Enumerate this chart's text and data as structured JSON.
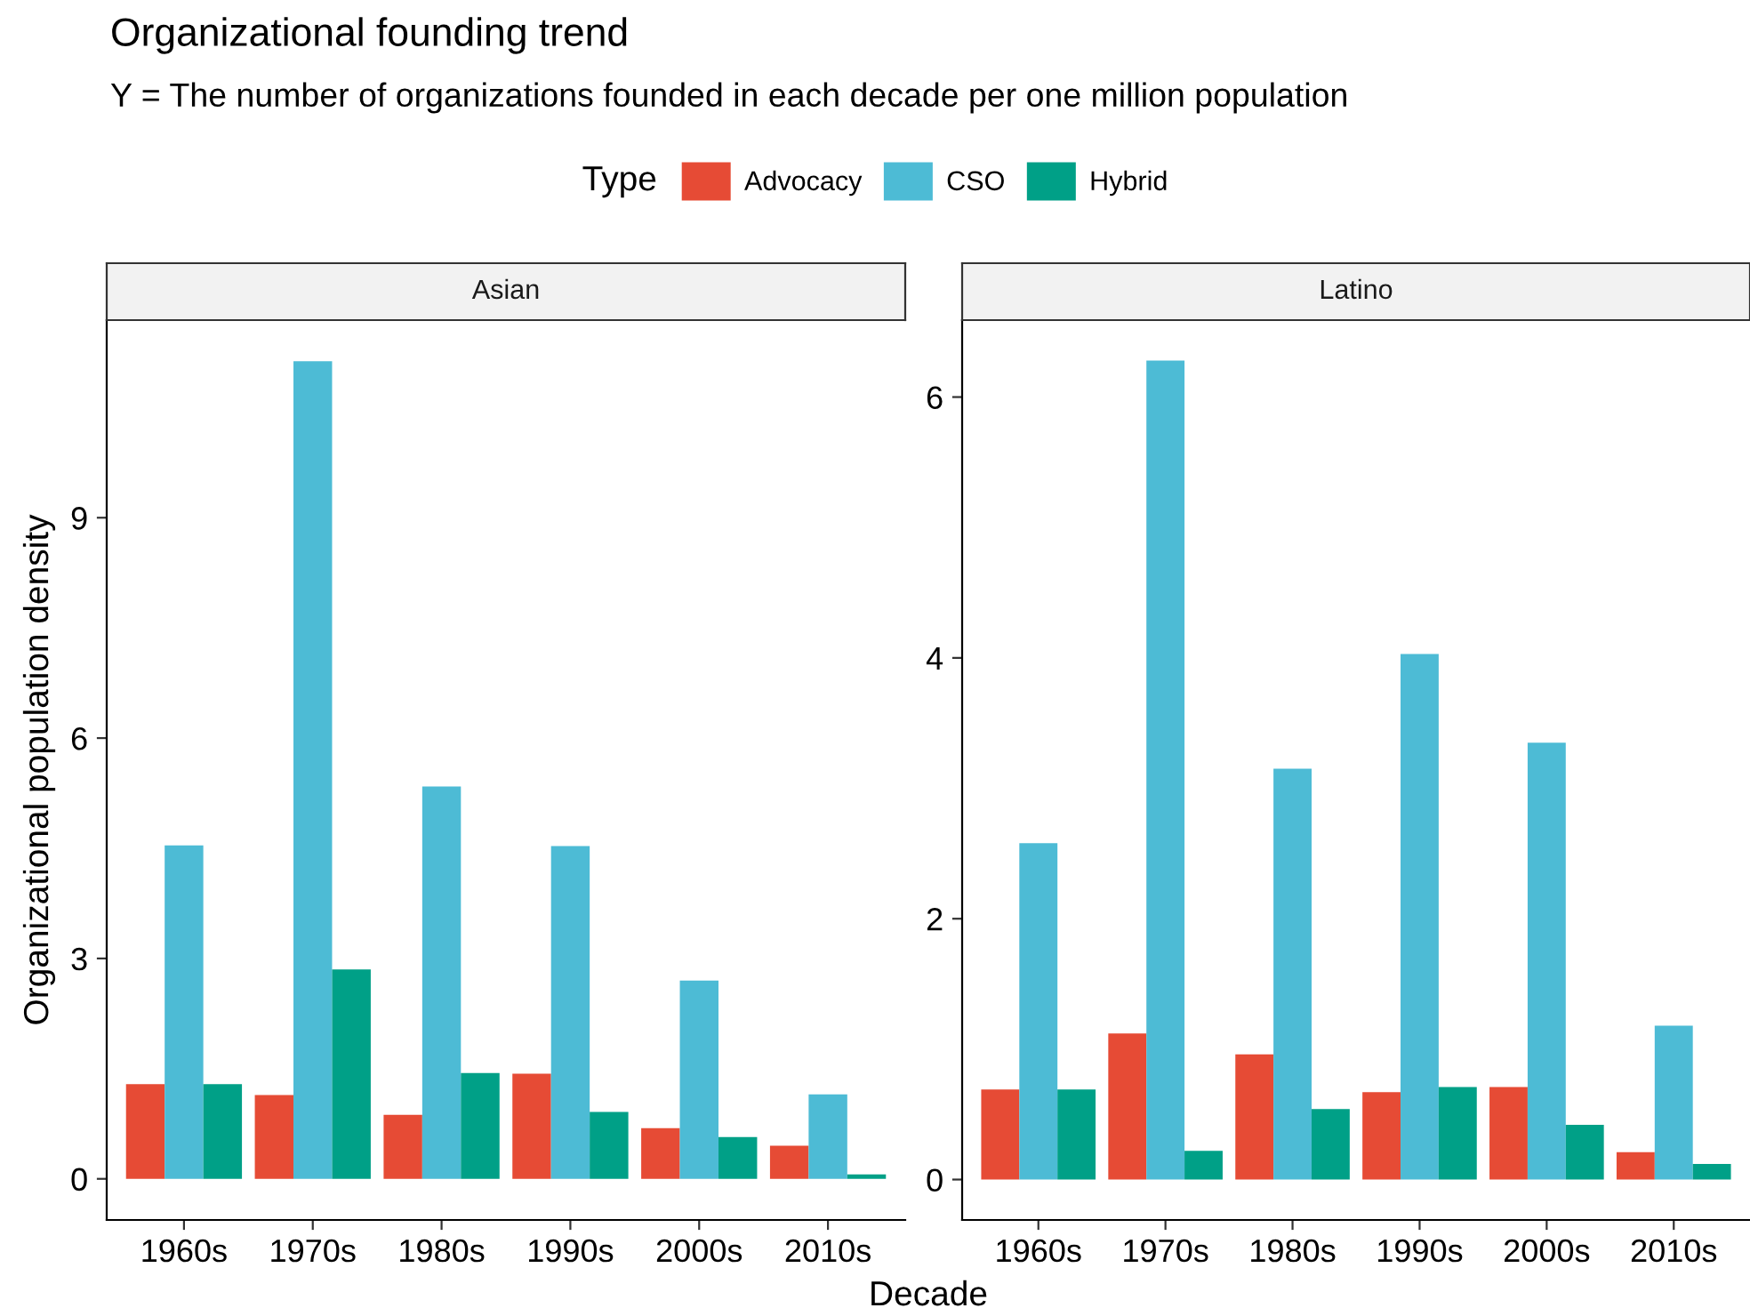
{
  "chart_data": [
    {
      "type": "bar",
      "title": "Asian",
      "annotations": [
        "Organizational founding trend",
        "Y = The number of organizations founded in each decade per one million population"
      ],
      "xlabel": "Decade",
      "ylabel": "Organizational population density",
      "legend_title": "Type",
      "legend": "top",
      "grid": false,
      "categories": [
        "1960s",
        "1970s",
        "1980s",
        "1990s",
        "2000s",
        "2010s"
      ],
      "ylim": [
        -0.56,
        11.69
      ],
      "yticks": [
        0,
        3,
        6,
        9
      ],
      "series": [
        {
          "name": "Advocacy",
          "color": "#e64b35",
          "values": [
            1.29,
            1.14,
            0.87,
            1.43,
            0.69,
            0.45
          ]
        },
        {
          "name": "CSO",
          "color": "#4dbbd5",
          "values": [
            4.54,
            11.13,
            5.34,
            4.53,
            2.7,
            1.15
          ]
        },
        {
          "name": "Hybrid",
          "color": "#00a087",
          "values": [
            1.29,
            2.85,
            1.44,
            0.91,
            0.57,
            0.06
          ]
        }
      ]
    },
    {
      "type": "bar",
      "title": "Latino",
      "grid": false,
      "categories": [
        "1960s",
        "1970s",
        "1980s",
        "1990s",
        "2000s",
        "2010s"
      ],
      "ylim": [
        -0.31,
        6.59
      ],
      "yticks": [
        0,
        2,
        4,
        6
      ],
      "series": [
        {
          "color": "#e64b35",
          "values": [
            0.69,
            1.12,
            0.96,
            0.67,
            0.71,
            0.21
          ]
        },
        {
          "color": "#4dbbd5",
          "values": [
            2.58,
            6.28,
            3.15,
            4.03,
            3.35,
            1.18
          ]
        },
        {
          "color": "#00a087",
          "values": [
            0.69,
            0.22,
            0.54,
            0.71,
            0.42,
            0.12
          ]
        }
      ]
    }
  ]
}
